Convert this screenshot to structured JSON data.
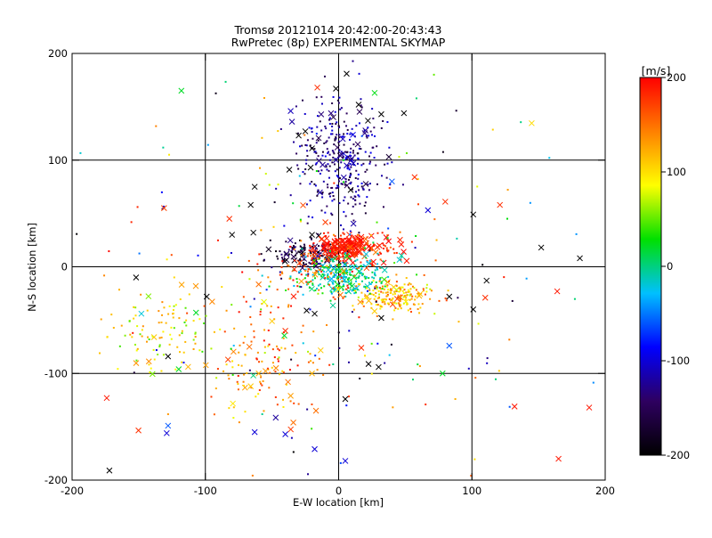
{
  "chart_data": {
    "type": "scatter",
    "title": "Tromsø 20121014 20:42:00-20:43:43",
    "subtitle": "RwPretec (8p) EXPERIMENTAL SKYMAP",
    "xlabel": "E-W location [km]",
    "ylabel": "N-S location [km]",
    "xlim": [
      -200,
      200
    ],
    "ylim": [
      -200,
      200
    ],
    "x_ticks": [
      "-200",
      "-100",
      "0",
      "100",
      "200"
    ],
    "y_ticks": [
      "-200",
      "-100",
      "0",
      "100",
      "200"
    ],
    "grid_lines": [
      -100,
      0,
      100
    ],
    "grid": true,
    "colorbar": {
      "unit_label": "[m/s]",
      "range": [
        -200,
        200
      ],
      "ticks": [
        "200",
        "100",
        "0",
        "-100",
        "-200"
      ],
      "colors": [
        "#000000",
        "#2e0060",
        "#0000ff",
        "#00c0ff",
        "#00e000",
        "#ffff00",
        "#ff8000",
        "#ff0000"
      ]
    },
    "marker_types": [
      "dot",
      "x"
    ],
    "points": [
      {
        "x": -118,
        "y": 165,
        "v": 20,
        "m": "x"
      },
      {
        "x": 27,
        "y": 163,
        "v": 25,
        "m": "x"
      },
      {
        "x": -16,
        "y": 168,
        "v": 180,
        "m": "x"
      },
      {
        "x": 6,
        "y": 181,
        "v": -200,
        "m": "x"
      },
      {
        "x": 15,
        "y": 152,
        "v": -200,
        "m": "x"
      },
      {
        "x": -2,
        "y": 167,
        "v": -200,
        "m": "x"
      },
      {
        "x": 32,
        "y": 143,
        "v": -200,
        "m": "x"
      },
      {
        "x": 49,
        "y": 144,
        "v": -200,
        "m": "x"
      },
      {
        "x": -36,
        "y": 146,
        "v": -110,
        "m": "x"
      },
      {
        "x": 22,
        "y": 137,
        "v": -200,
        "m": "x"
      },
      {
        "x": -35,
        "y": 136,
        "v": -120,
        "m": "x"
      },
      {
        "x": -25,
        "y": 127,
        "v": -200,
        "m": "x"
      },
      {
        "x": -30,
        "y": 123,
        "v": -200,
        "m": "x"
      },
      {
        "x": -20,
        "y": 111,
        "v": -200,
        "m": "x"
      },
      {
        "x": -37,
        "y": 91,
        "v": -200,
        "m": "x"
      },
      {
        "x": -21,
        "y": 93,
        "v": -200,
        "m": "x"
      },
      {
        "x": -2,
        "y": 100,
        "v": -120,
        "m": "x"
      },
      {
        "x": 6,
        "y": 95,
        "v": -110,
        "m": "x"
      },
      {
        "x": 11,
        "y": 97,
        "v": -110,
        "m": "x"
      },
      {
        "x": 40,
        "y": 80,
        "v": -60,
        "m": "x"
      },
      {
        "x": 57,
        "y": 84,
        "v": 180,
        "m": "x"
      },
      {
        "x": 9,
        "y": 72,
        "v": -200,
        "m": "x"
      },
      {
        "x": -63,
        "y": 75,
        "v": -200,
        "m": "x"
      },
      {
        "x": -66,
        "y": 58,
        "v": -200,
        "m": "x"
      },
      {
        "x": -131,
        "y": 55,
        "v": 170,
        "m": "x"
      },
      {
        "x": -82,
        "y": 45,
        "v": 180,
        "m": "x"
      },
      {
        "x": 67,
        "y": 53,
        "v": -100,
        "m": "x"
      },
      {
        "x": 101,
        "y": 49,
        "v": -200,
        "m": "x"
      },
      {
        "x": 121,
        "y": 58,
        "v": 180,
        "m": "x"
      },
      {
        "x": 80,
        "y": 61,
        "v": 180,
        "m": "x"
      },
      {
        "x": -80,
        "y": 30,
        "v": -200,
        "m": "x"
      },
      {
        "x": -64,
        "y": 32,
        "v": -200,
        "m": "x"
      },
      {
        "x": -20,
        "y": 30,
        "v": -200,
        "m": "x"
      },
      {
        "x": 17,
        "y": 28,
        "v": 190,
        "m": "x"
      },
      {
        "x": 47,
        "y": 21,
        "v": 190,
        "m": "x"
      },
      {
        "x": 152,
        "y": 18,
        "v": -200,
        "m": "x"
      },
      {
        "x": 181,
        "y": 8,
        "v": -200,
        "m": "x"
      },
      {
        "x": -152,
        "y": -10,
        "v": -200,
        "m": "x"
      },
      {
        "x": -99,
        "y": -28,
        "v": -200,
        "m": "x"
      },
      {
        "x": -24,
        "y": -41,
        "v": -200,
        "m": "x"
      },
      {
        "x": 32,
        "y": -48,
        "v": -200,
        "m": "x"
      },
      {
        "x": 83,
        "y": -28,
        "v": -200,
        "m": "x"
      },
      {
        "x": 101,
        "y": -40,
        "v": -200,
        "m": "x"
      },
      {
        "x": 111,
        "y": -13,
        "v": -200,
        "m": "x"
      },
      {
        "x": 110,
        "y": -29,
        "v": 180,
        "m": "x"
      },
      {
        "x": 164,
        "y": -23,
        "v": 190,
        "m": "x"
      },
      {
        "x": -148,
        "y": -44,
        "v": -20,
        "m": "x"
      },
      {
        "x": -107,
        "y": -43,
        "v": 20,
        "m": "x"
      },
      {
        "x": -128,
        "y": -84,
        "v": -200,
        "m": "x"
      },
      {
        "x": -120,
        "y": -96,
        "v": 20,
        "m": "x"
      },
      {
        "x": -20,
        "y": -100,
        "v": 120,
        "m": "x"
      },
      {
        "x": 30,
        "y": -94,
        "v": -200,
        "m": "x"
      },
      {
        "x": 83,
        "y": -74,
        "v": -60,
        "m": "x"
      },
      {
        "x": 78,
        "y": -100,
        "v": 20,
        "m": "x"
      },
      {
        "x": -174,
        "y": -123,
        "v": 190,
        "m": "x"
      },
      {
        "x": -128,
        "y": -149,
        "v": -60,
        "m": "x"
      },
      {
        "x": -129,
        "y": -156,
        "v": -100,
        "m": "x"
      },
      {
        "x": -63,
        "y": -155,
        "v": -100,
        "m": "x"
      },
      {
        "x": -40,
        "y": -157,
        "v": -100,
        "m": "x"
      },
      {
        "x": -18,
        "y": -171,
        "v": -100,
        "m": "x"
      },
      {
        "x": -34,
        "y": -146,
        "v": 150,
        "m": "x"
      },
      {
        "x": -17,
        "y": -135,
        "v": 150,
        "m": "x"
      },
      {
        "x": 5,
        "y": -124,
        "v": -200,
        "m": "x"
      },
      {
        "x": 5,
        "y": -182,
        "v": -100,
        "m": "x"
      },
      {
        "x": -172,
        "y": -191,
        "v": -200,
        "m": "x"
      },
      {
        "x": 132,
        "y": -131,
        "v": 190,
        "m": "x"
      },
      {
        "x": 165,
        "y": -180,
        "v": 190,
        "m": "x"
      },
      {
        "x": 188,
        "y": -132,
        "v": 190,
        "m": "x"
      },
      {
        "x": -83,
        "y": -87,
        "v": 170,
        "m": "x"
      },
      {
        "x": -47,
        "y": -95,
        "v": 140,
        "m": "x"
      },
      {
        "x": -38,
        "y": -108,
        "v": 150,
        "m": "x"
      },
      {
        "x": -18,
        "y": -44,
        "v": -200,
        "m": "x"
      },
      {
        "x": -56,
        "y": -33,
        "v": 80,
        "m": "x"
      },
      {
        "x": -50,
        "y": -51,
        "v": 110,
        "m": "x"
      },
      {
        "x": -40,
        "y": -60,
        "v": 180,
        "m": "x"
      },
      {
        "x": 17,
        "y": -76,
        "v": 180,
        "m": "x"
      },
      {
        "x": -67,
        "y": -75,
        "v": 150,
        "m": "x"
      },
      {
        "x": -60,
        "y": -100,
        "v": 120,
        "m": "x"
      },
      {
        "x": -66,
        "y": -112,
        "v": 110,
        "m": "x"
      },
      {
        "x": -36,
        "y": -121,
        "v": 130,
        "m": "x"
      }
    ],
    "clusters": [
      {
        "cx": 0,
        "cy": 100,
        "sx": 16,
        "sy": 28,
        "n": 330,
        "vmin": -170,
        "vmax": -90,
        "xratio": 0.06
      },
      {
        "cx": -22,
        "cy": 12,
        "sx": 14,
        "sy": 7,
        "n": 150,
        "vmin": -200,
        "vmax": -120,
        "xratio": 0.25
      },
      {
        "cx": 4,
        "cy": 19,
        "sx": 11,
        "sy": 6,
        "n": 170,
        "vmin": 175,
        "vmax": 200,
        "xratio": 0.45
      },
      {
        "cx": 20,
        "cy": 16,
        "sx": 16,
        "sy": 8,
        "n": 80,
        "vmin": 140,
        "vmax": 200,
        "xratio": 0.3
      },
      {
        "cx": 2,
        "cy": -8,
        "sx": 18,
        "sy": 9,
        "n": 260,
        "vmin": -40,
        "vmax": 40,
        "xratio": 0.12
      },
      {
        "cx": 42,
        "cy": -28,
        "sx": 16,
        "sy": 8,
        "n": 200,
        "vmin": 70,
        "vmax": 170,
        "xratio": 0.08
      },
      {
        "cx": -22,
        "cy": -5,
        "sx": 18,
        "sy": 12,
        "n": 90,
        "vmin": 120,
        "vmax": 200,
        "xratio": 0.1
      },
      {
        "cx": -130,
        "cy": -55,
        "sx": 20,
        "sy": 22,
        "n": 110,
        "vmin": 40,
        "vmax": 140,
        "xratio": 0.03
      },
      {
        "cx": -60,
        "cy": -90,
        "sx": 22,
        "sy": 28,
        "n": 120,
        "vmin": 90,
        "vmax": 200,
        "xratio": 0.04
      },
      {
        "cx": 0,
        "cy": 0,
        "sx": 85,
        "sy": 90,
        "n": 200,
        "vmin": -200,
        "vmax": 200,
        "xratio": 0.05
      }
    ]
  }
}
